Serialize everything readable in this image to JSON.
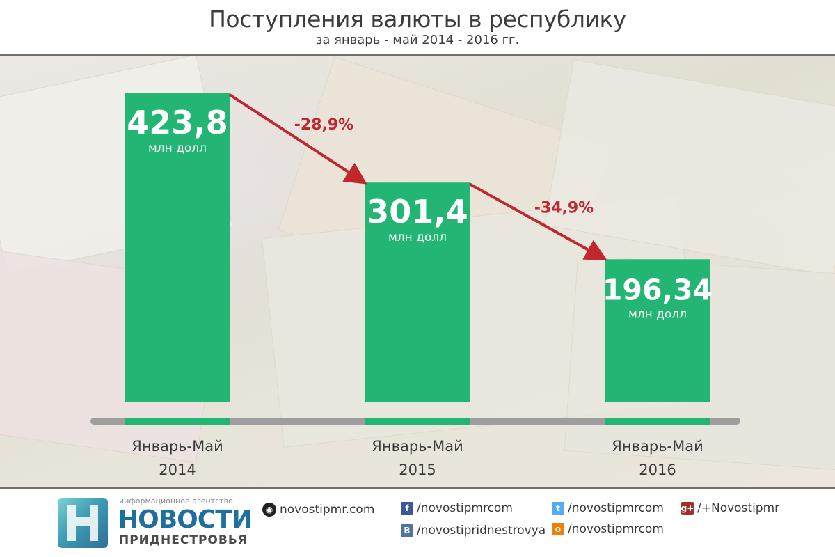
{
  "header": {
    "title": "Поступления валюты в республику",
    "subtitle": "за январь - май 2014 - 2016 гг."
  },
  "chart_data": {
    "type": "bar",
    "categories": [
      "Январь-Май 2014",
      "Январь-Май 2015",
      "Январь-Май 2016"
    ],
    "category_lines": [
      [
        "Январь-Май",
        "2014"
      ],
      [
        "Январь-Май",
        "2015"
      ],
      [
        "Январь-Май",
        "2016"
      ]
    ],
    "values": [
      423.8,
      301.4,
      196.34
    ],
    "value_labels": [
      "423,8",
      "301,4",
      "196,34"
    ],
    "unit_label": "млн долл",
    "changes": [
      "-28,9%",
      "-34,9%"
    ],
    "ylim": [
      0,
      423.8
    ],
    "bar_color": "#22b573",
    "arrow_color": "#c1272d",
    "change_label_color": "#c1272d"
  },
  "footer": {
    "tagline": "информационное агентство",
    "brand": "НОВОСТИ",
    "brand2": "ПРИДНЕСТРОВЬЯ",
    "links": {
      "site": "novostipmr.com",
      "facebook": "/novostipmrcom",
      "vk": "/novostipridnestrovya",
      "twitter": "/novostipmrcom",
      "odnoklassniki": "/novostipmrcom",
      "googleplus": "/+Novostipmr"
    }
  }
}
